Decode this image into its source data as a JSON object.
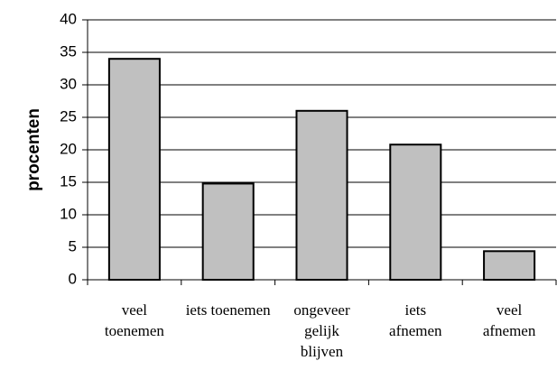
{
  "chart_data": {
    "type": "bar",
    "ylabel": "procenten",
    "categories": [
      "veel\ntoenemen",
      "iets toenemen",
      "ongeveer\ngelijk\nblijven",
      "iets\nafnemen",
      "veel\nafnemen"
    ],
    "values": [
      34,
      14.8,
      26,
      20.8,
      4.4
    ],
    "color": "#c0c0c0",
    "ylim": [
      0,
      40
    ],
    "yticks": [
      0,
      5,
      10,
      15,
      20,
      25,
      30,
      35,
      40
    ],
    "grid": true
  }
}
